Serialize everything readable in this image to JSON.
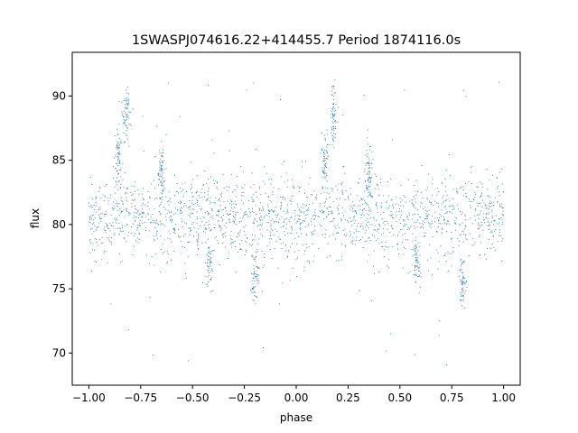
{
  "chart_data": {
    "type": "scatter",
    "title": "1SWASPJ074616.22+414455.7 Period 1874116.0s",
    "xlabel": "phase",
    "ylabel": "flux",
    "xlim": [
      -1.08,
      1.08
    ],
    "ylim": [
      67.5,
      93.4
    ],
    "xticks": [
      -1.0,
      -0.75,
      -0.5,
      -0.25,
      0.0,
      0.25,
      0.5,
      0.75,
      1.0
    ],
    "xtick_labels": [
      "−1.00",
      "−0.75",
      "−0.50",
      "−0.25",
      "0.00",
      "0.25",
      "0.50",
      "0.75",
      "1.00"
    ],
    "yticks": [
      70,
      75,
      80,
      85,
      90
    ],
    "ytick_labels": [
      "70",
      "75",
      "80",
      "85",
      "90"
    ],
    "grid": false,
    "point_color": "#1f77b4",
    "series": [
      {
        "phase_range": [
          -1.0,
          1.0
        ],
        "baseline_flux": 80.5,
        "scatter_spread": 1.6,
        "bright_clusters": [
          {
            "phase": -0.82,
            "flux": 88.5
          },
          {
            "phase": 0.18,
            "flux": 88.5
          },
          {
            "phase": -0.86,
            "flux": 85.0
          },
          {
            "phase": 0.14,
            "flux": 85.0
          },
          {
            "phase": -0.65,
            "flux": 84.0
          },
          {
            "phase": 0.35,
            "flux": 84.0
          }
        ],
        "faint_clusters": [
          {
            "phase": -0.2,
            "flux": 75.5
          },
          {
            "phase": 0.8,
            "flux": 75.5
          },
          {
            "phase": -0.42,
            "flux": 77.0
          },
          {
            "phase": 0.58,
            "flux": 77.0
          }
        ]
      }
    ]
  }
}
